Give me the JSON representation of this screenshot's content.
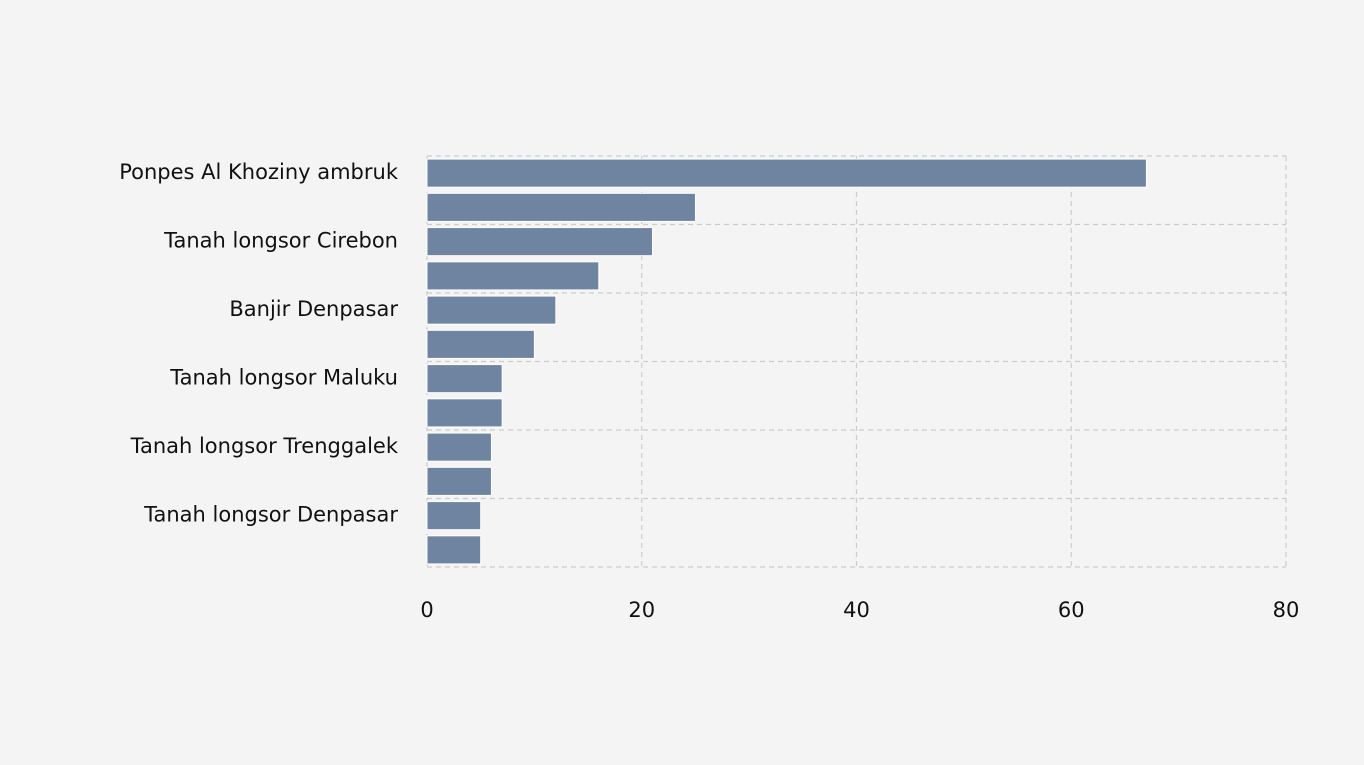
{
  "chart_data": {
    "type": "bar",
    "orientation": "horizontal",
    "categories": [
      "Ponpes Al Khoziny ambruk",
      "",
      "Tanah longsor Cirebon",
      "",
      "Banjir Denpasar",
      "",
      "Tanah longsor Maluku",
      "",
      "Tanah longsor Trenggalek",
      "",
      "Tanah longsor Denpasar",
      ""
    ],
    "values": [
      67,
      25,
      21,
      16,
      12,
      10,
      7,
      7,
      6,
      6,
      5,
      5
    ],
    "xlim": [
      0,
      80
    ],
    "xticks": [
      0,
      20,
      40,
      60,
      80
    ],
    "title": "",
    "xlabel": "",
    "ylabel": "",
    "grid": true,
    "colors": {
      "bar": "#6e84a0",
      "bar_edge": "#ffffff",
      "grid": "#cccccc",
      "background": "#f4f4f5",
      "text": "#111111"
    }
  }
}
